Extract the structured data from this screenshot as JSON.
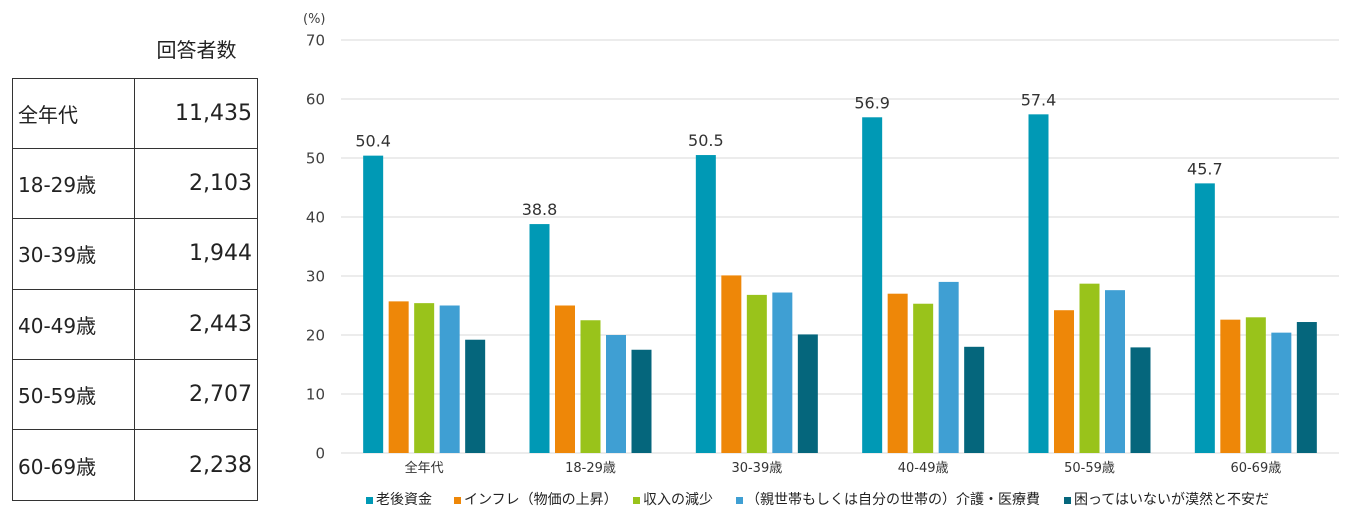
{
  "table": {
    "header": "回答者数",
    "rows": [
      {
        "label": "全年代",
        "value": "11,435"
      },
      {
        "label": "18-29歳",
        "value": "2,103"
      },
      {
        "label": "30-39歳",
        "value": "1,944"
      },
      {
        "label": "40-49歳",
        "value": "2,443"
      },
      {
        "label": "50-59歳",
        "value": "2,707"
      },
      {
        "label": "60-69歳",
        "value": "2,238"
      }
    ]
  },
  "chart_data": {
    "type": "bar",
    "title": "",
    "xlabel": "",
    "ylabel": "(%)",
    "ylim": [
      0,
      70
    ],
    "yticks": [
      0,
      10,
      20,
      30,
      40,
      50,
      60,
      70
    ],
    "grid": true,
    "legend": "bottom",
    "categories": [
      "全年代",
      "18-29歳",
      "30-39歳",
      "40-49歳",
      "50-59歳",
      "60-69歳"
    ],
    "series": [
      {
        "name": "老後資金",
        "color": "#0099B5",
        "show_labels": true,
        "values": [
          50.4,
          38.8,
          50.5,
          56.9,
          57.4,
          45.7
        ]
      },
      {
        "name": "インフレ（物価の上昇）",
        "color": "#EE8708",
        "show_labels": false,
        "values": [
          25.7,
          25.0,
          30.1,
          27.0,
          24.2,
          22.6
        ]
      },
      {
        "name": "収入の減少",
        "color": "#99C31B",
        "show_labels": false,
        "values": [
          25.4,
          22.5,
          26.8,
          25.3,
          28.7,
          23.0
        ]
      },
      {
        "name": "（親世帯もしくは自分の世帯の）介護・医療費",
        "color": "#3F9FD3",
        "show_labels": false,
        "values": [
          25.0,
          20.0,
          27.2,
          29.0,
          27.6,
          20.4
        ]
      },
      {
        "name": "困ってはいないが漠然と不安だ",
        "color": "#05667C",
        "show_labels": false,
        "values": [
          19.2,
          17.5,
          20.1,
          18.0,
          17.9,
          22.2
        ]
      }
    ]
  }
}
